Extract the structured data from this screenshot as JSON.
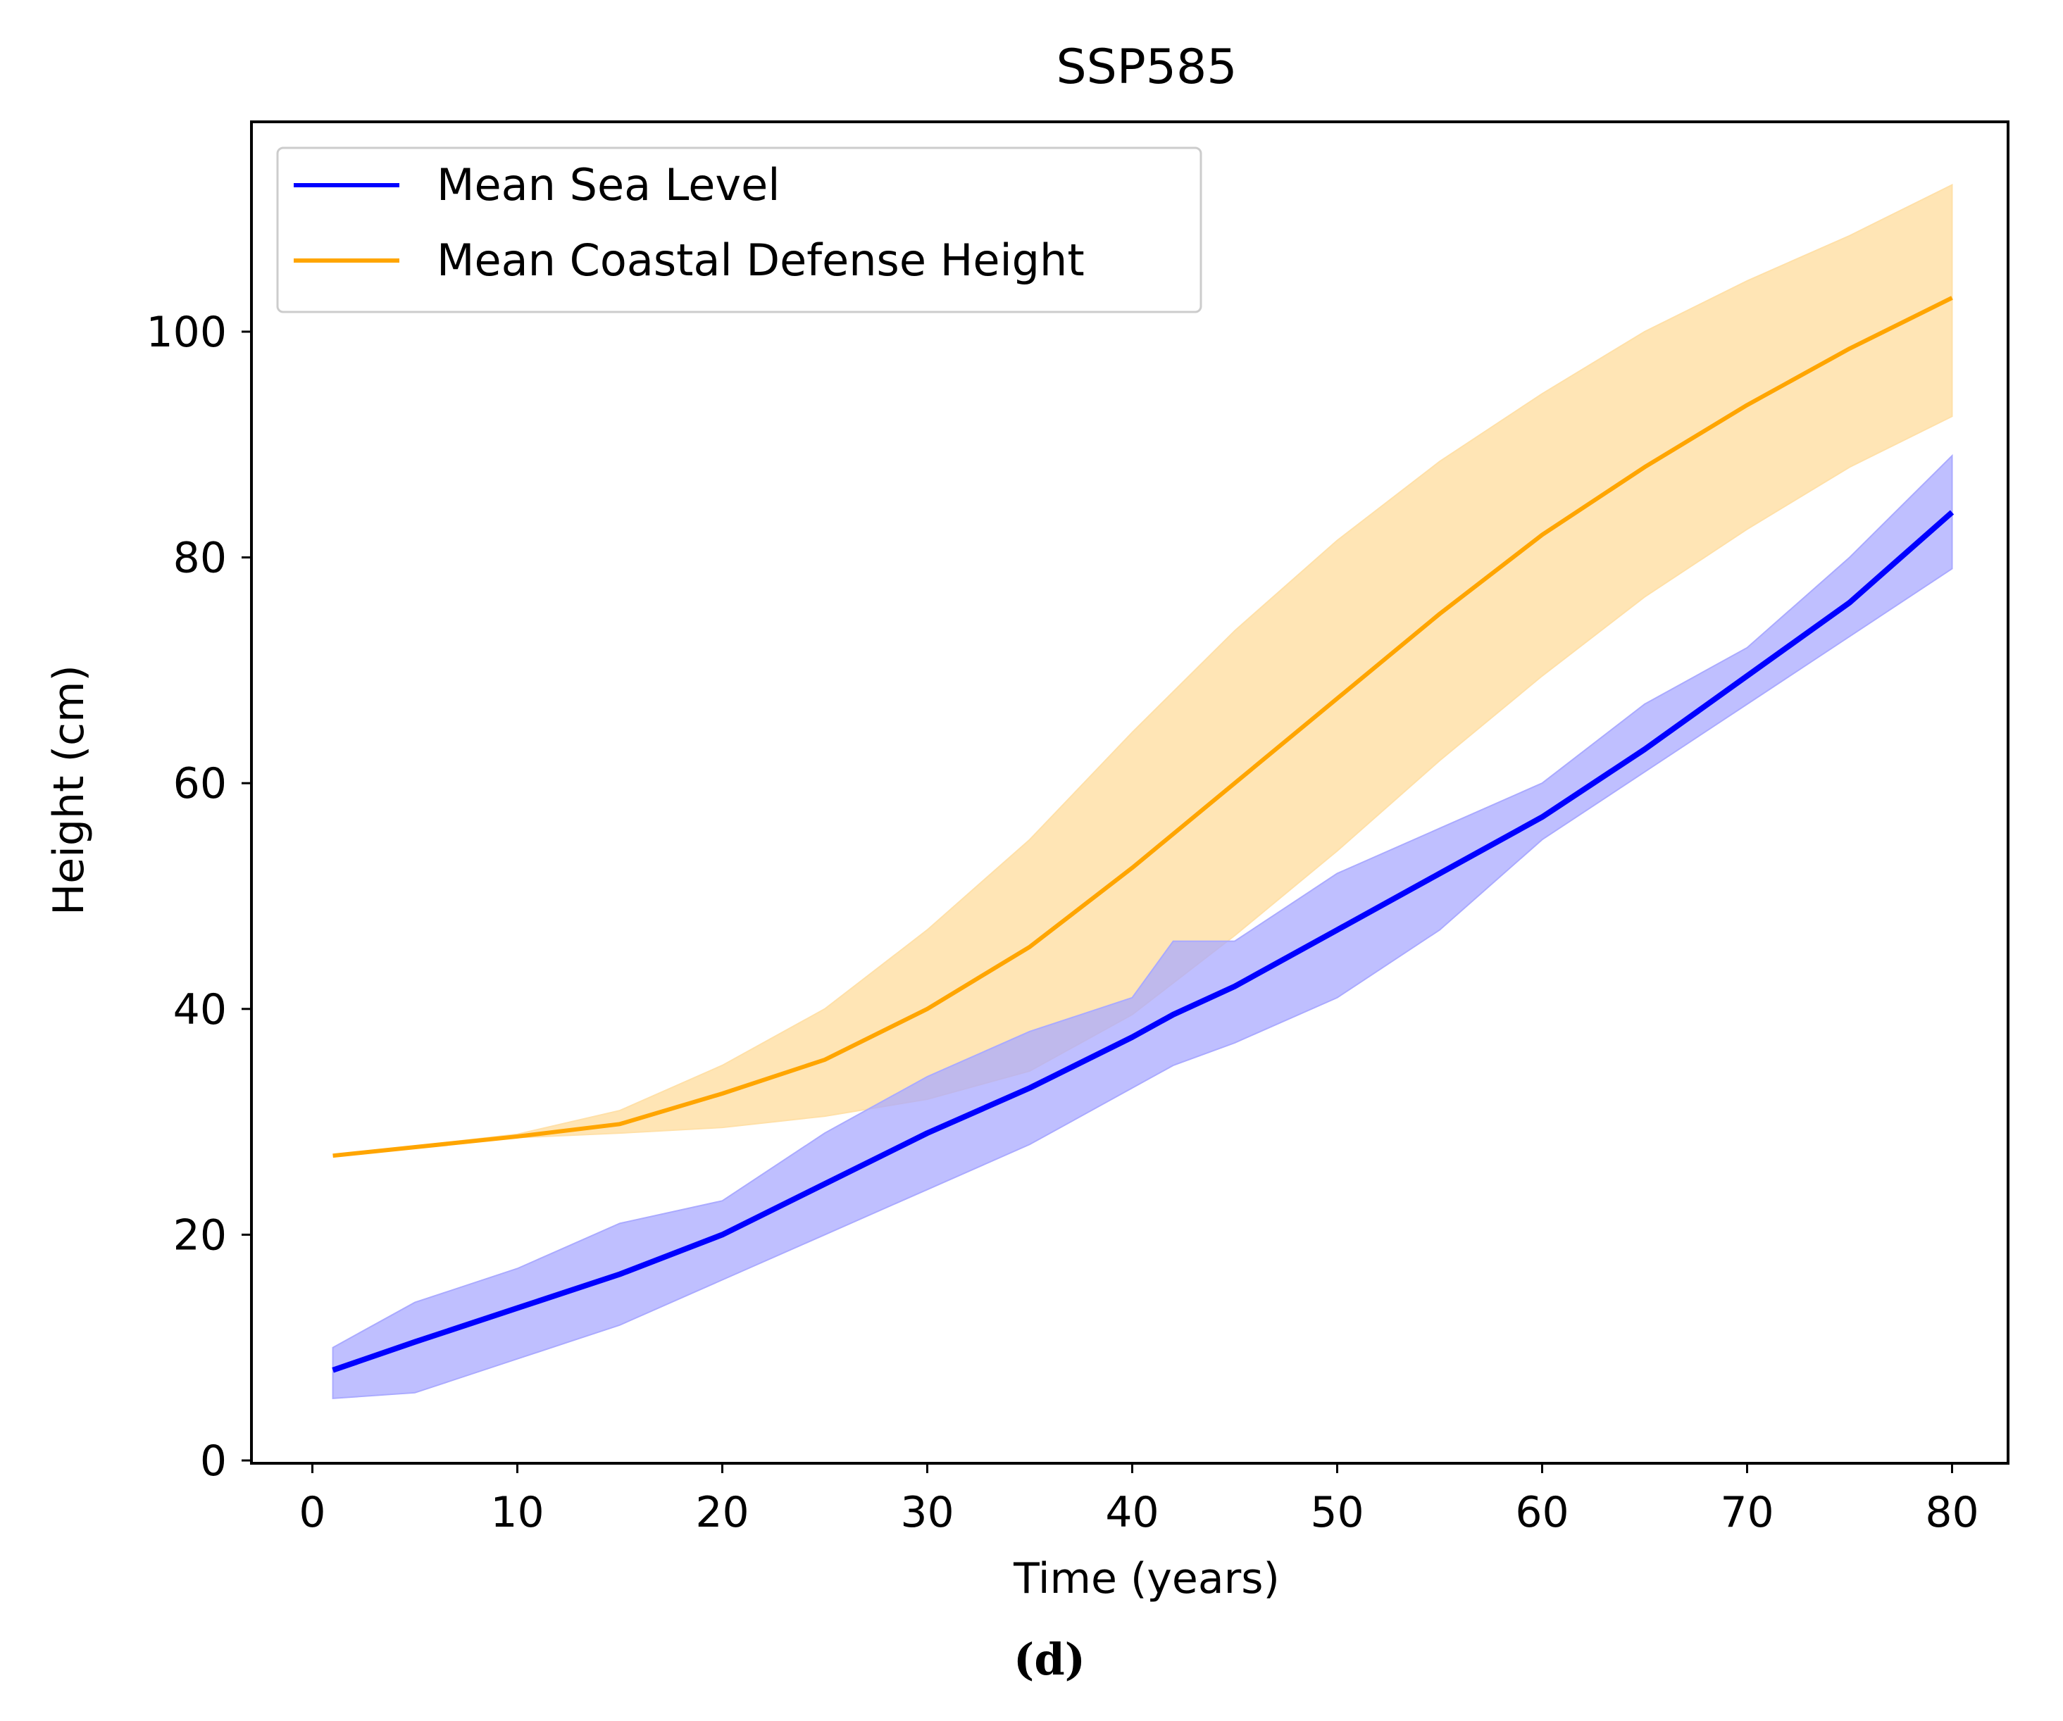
{
  "chart_data": {
    "type": "line",
    "title": "SSP585",
    "xlabel": "Time (years)",
    "ylabel": "Height (cm)",
    "caption": "(d)",
    "xlim": [
      -3,
      83
    ],
    "ylim": [
      0,
      118
    ],
    "xticks": [
      0,
      10,
      20,
      30,
      40,
      50,
      60,
      70,
      80
    ],
    "yticks": [
      0,
      20,
      40,
      60,
      80,
      100
    ],
    "legend": {
      "placement": "top-left",
      "entries": [
        "Mean Sea Level",
        "Mean Coastal Defense Height"
      ]
    },
    "colors": {
      "sea": "#0000ff",
      "sea_band": "#aaaaff",
      "defense": "#ffa500",
      "defense_band": "#ffe0a8"
    },
    "series": [
      {
        "name": "Mean Sea Level",
        "x": [
          1,
          5,
          10,
          15,
          20,
          25,
          30,
          35,
          40,
          42,
          45,
          50,
          55,
          60,
          65,
          70,
          75,
          80
        ],
        "values": [
          8,
          10.5,
          13.5,
          16.5,
          20,
          24.5,
          29,
          33,
          37.5,
          39.5,
          42,
          47,
          52,
          57,
          63,
          69.5,
          76,
          84
        ],
        "upper": [
          10,
          14,
          17,
          21,
          23,
          29,
          34,
          38,
          41,
          46,
          46,
          52,
          56,
          60,
          67,
          72,
          80,
          89
        ],
        "lower": [
          5.5,
          6,
          9,
          12,
          16,
          20,
          24,
          28,
          33,
          35,
          37,
          41,
          47,
          55,
          61,
          67,
          73,
          79
        ]
      },
      {
        "name": "Mean Coastal Defense Height",
        "x": [
          1,
          10,
          15,
          20,
          25,
          30,
          35,
          40,
          45,
          50,
          55,
          60,
          65,
          70,
          75,
          80
        ],
        "values": [
          27,
          28.7,
          29.8,
          32.5,
          35.5,
          40,
          45.5,
          52.5,
          60,
          67.5,
          75,
          82,
          88,
          93.5,
          98.5,
          103
        ],
        "upper": [
          27,
          28.9,
          31,
          35,
          40,
          47,
          55,
          64.5,
          73.5,
          81.5,
          88.5,
          94.5,
          100,
          104.5,
          108.5,
          113
        ],
        "lower": [
          27,
          28.6,
          29,
          29.5,
          30.5,
          32,
          34.5,
          39.5,
          46.5,
          54,
          62,
          69.5,
          76.5,
          82.5,
          88,
          92.5
        ]
      }
    ]
  }
}
